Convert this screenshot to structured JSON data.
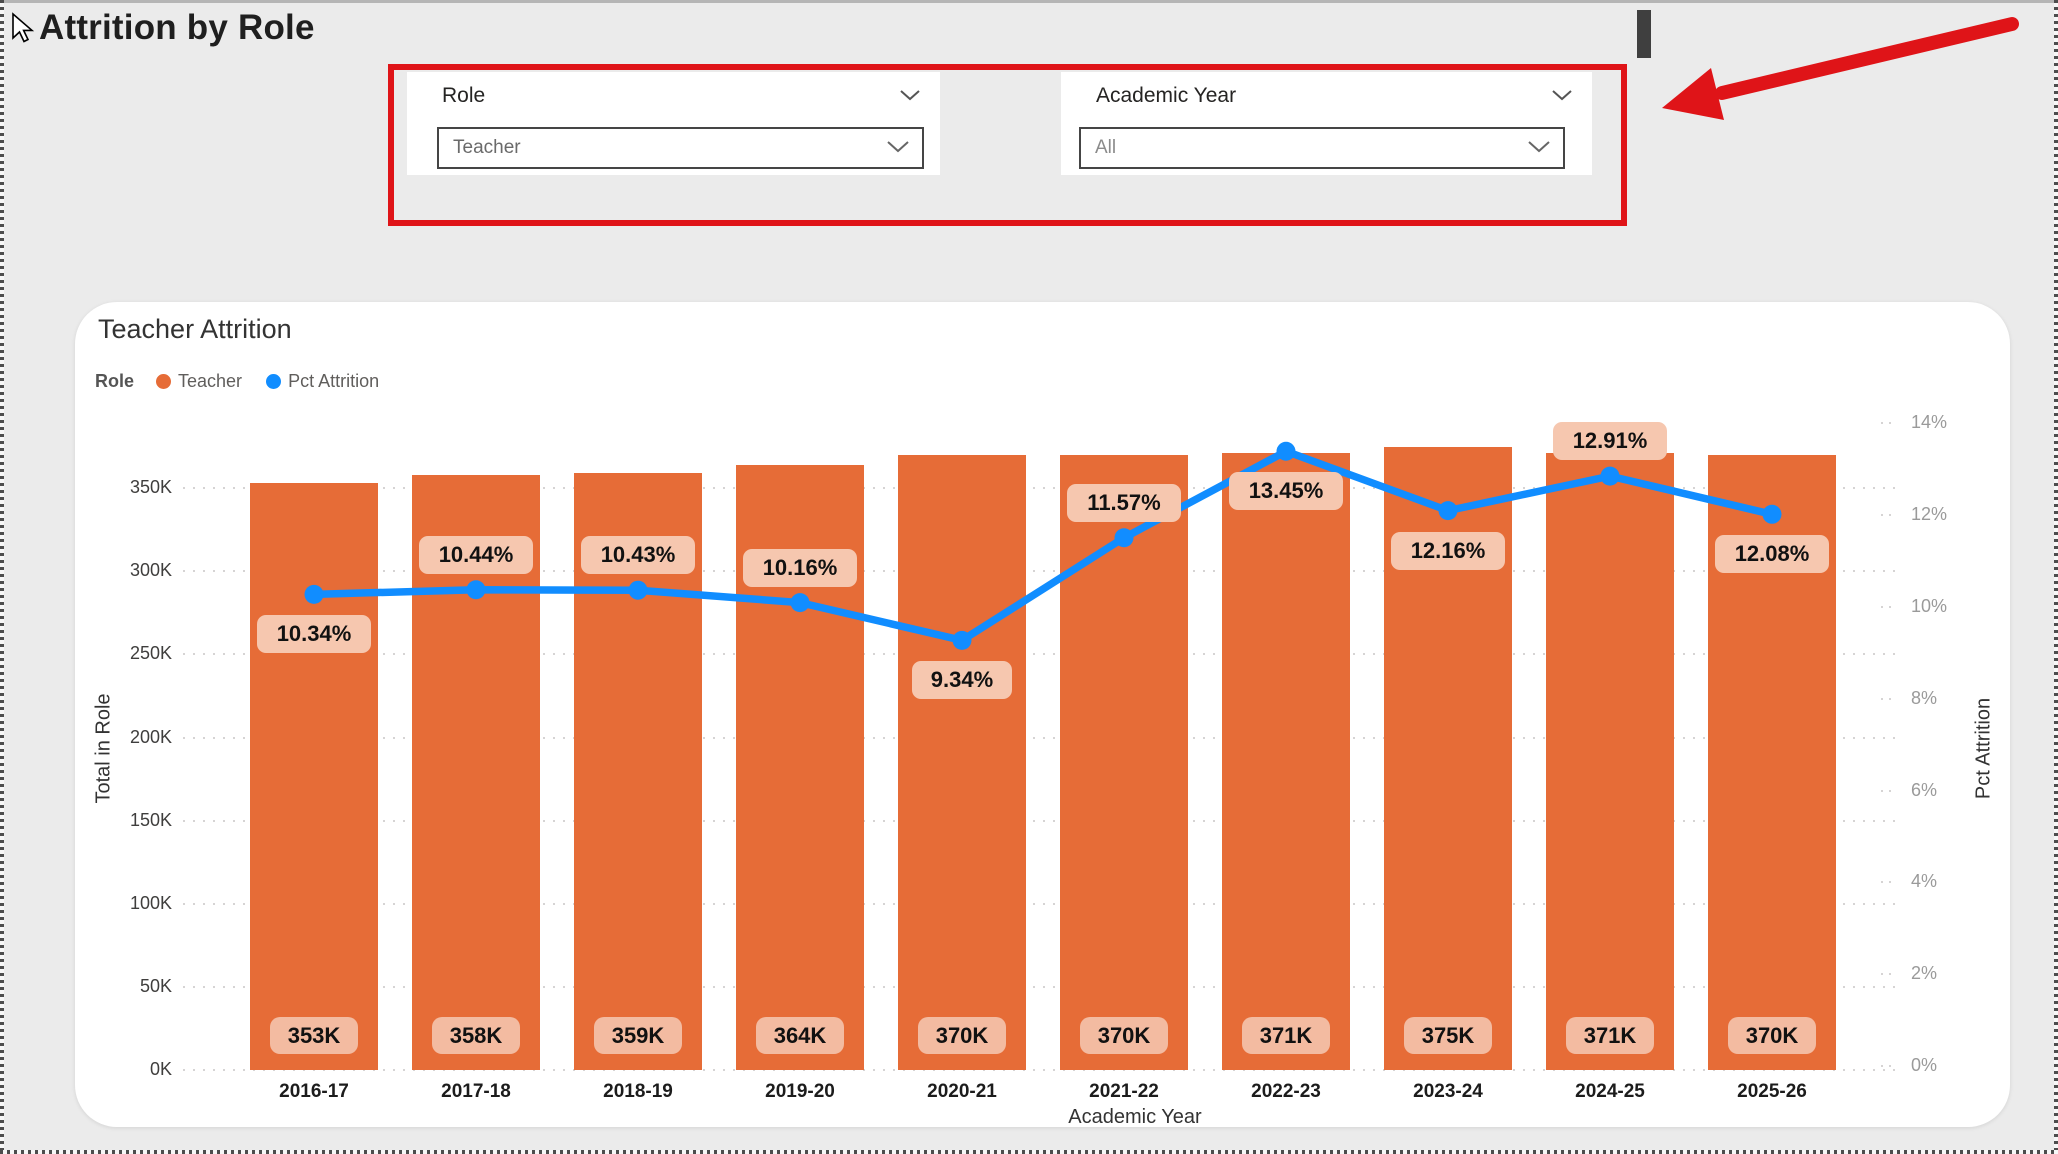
{
  "header": {
    "title": "Attrition by Role"
  },
  "colors": {
    "bar": "#E66C37",
    "line": "#118DFF",
    "bar_label_bg": "#F3BBA1",
    "line_label_bg": "#F6C7AF",
    "annotation_red": "#DF1418",
    "card_bg": "#FFFFFF",
    "page_bg": "#EBEBEB"
  },
  "slicers": {
    "role": {
      "label": "Role",
      "value": "Teacher"
    },
    "academic_year": {
      "label": "Academic Year",
      "value": "All"
    }
  },
  "chart": {
    "title": "Teacher Attrition",
    "legend_title": "Role",
    "legend": [
      {
        "label": "Teacher"
      },
      {
        "label": "Pct Attrition"
      }
    ]
  },
  "chart_data": {
    "type": "bar",
    "subtype": "combo-bar-line-dual-axis",
    "title": "Teacher Attrition",
    "categories": [
      "2016-17",
      "2017-18",
      "2018-19",
      "2019-20",
      "2020-21",
      "2021-22",
      "2022-23",
      "2023-24",
      "2024-25",
      "2025-26"
    ],
    "series": [
      {
        "name": "Teacher",
        "type": "bar",
        "axis": "left",
        "unit": "thousands",
        "values": [
          353,
          358,
          359,
          364,
          370,
          370,
          371,
          375,
          371,
          370
        ],
        "labels": [
          "353K",
          "358K",
          "359K",
          "364K",
          "370K",
          "370K",
          "371K",
          "375K",
          "371K",
          "370K"
        ]
      },
      {
        "name": "Pct Attrition",
        "type": "line",
        "axis": "right",
        "unit": "percent",
        "values": [
          10.34,
          10.44,
          10.43,
          10.16,
          9.34,
          11.57,
          13.45,
          12.16,
          12.91,
          12.08
        ],
        "labels": [
          "10.34%",
          "10.44%",
          "10.43%",
          "10.16%",
          "9.34%",
          "11.57%",
          "13.45%",
          "12.16%",
          "12.91%",
          "12.08%"
        ],
        "label_position": [
          "below",
          "above",
          "above",
          "above",
          "below",
          "above",
          "below",
          "below",
          "above",
          "below"
        ]
      }
    ],
    "xlabel": "Academic Year",
    "ylabel_left": "Total in Role",
    "ylabel_right": "Pct Attrition",
    "left_ticks": [
      "0K",
      "50K",
      "100K",
      "150K",
      "200K",
      "250K",
      "300K",
      "350K"
    ],
    "left_tick_values": [
      0,
      50,
      100,
      150,
      200,
      250,
      300,
      350
    ],
    "right_ticks": [
      "0%",
      "2%",
      "4%",
      "6%",
      "8%",
      "10%",
      "12%",
      "14%"
    ],
    "right_tick_values": [
      0,
      2,
      4,
      6,
      8,
      10,
      12,
      14
    ],
    "left_axis_max": 391,
    "right_axis_max": 14.13,
    "grid": "dotted",
    "legend_position": "top-left"
  }
}
